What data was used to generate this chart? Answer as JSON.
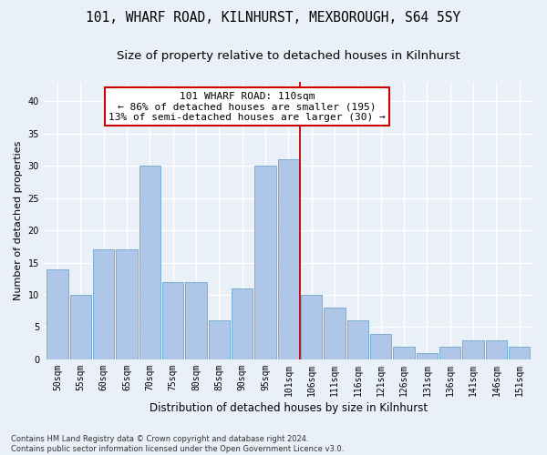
{
  "title1": "101, WHARF ROAD, KILNHURST, MEXBOROUGH, S64 5SY",
  "title2": "Size of property relative to detached houses in Kilnhurst",
  "xlabel": "Distribution of detached houses by size in Kilnhurst",
  "ylabel": "Number of detached properties",
  "categories": [
    "50sqm",
    "55sqm",
    "60sqm",
    "65sqm",
    "70sqm",
    "75sqm",
    "80sqm",
    "85sqm",
    "90sqm",
    "95sqm",
    "101sqm",
    "106sqm",
    "111sqm",
    "116sqm",
    "121sqm",
    "126sqm",
    "131sqm",
    "136sqm",
    "141sqm",
    "146sqm",
    "151sqm"
  ],
  "values": [
    14,
    10,
    17,
    17,
    30,
    12,
    12,
    6,
    11,
    30,
    31,
    10,
    8,
    6,
    4,
    2,
    1,
    2,
    3,
    3,
    2
  ],
  "bar_color": "#aec6e8",
  "bar_edge_color": "#7aadd4",
  "bg_color": "#eaf0f8",
  "grid_color": "#ffffff",
  "vline_x": 10.5,
  "vline_color": "#cc0000",
  "annotation_text": "101 WHARF ROAD: 110sqm\n← 86% of detached houses are smaller (195)\n13% of semi-detached houses are larger (30) →",
  "annotation_box_color": "#ffffff",
  "annotation_box_edge": "#cc0000",
  "ylim": [
    0,
    43
  ],
  "yticks": [
    0,
    5,
    10,
    15,
    20,
    25,
    30,
    35,
    40
  ],
  "footnote1": "Contains HM Land Registry data © Crown copyright and database right 2024.",
  "footnote2": "Contains public sector information licensed under the Open Government Licence v3.0.",
  "title1_fontsize": 10.5,
  "title2_fontsize": 9.5,
  "xlabel_fontsize": 8.5,
  "ylabel_fontsize": 8,
  "tick_fontsize": 7,
  "annotation_fontsize": 8,
  "footnote_fontsize": 6
}
